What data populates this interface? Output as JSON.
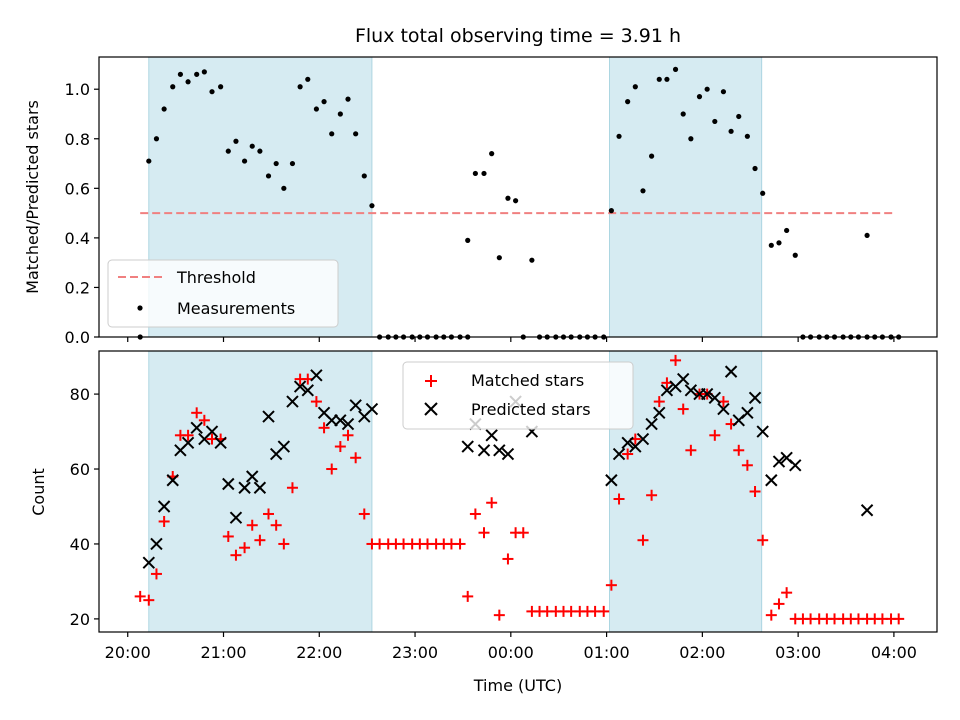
{
  "chart_data": [
    {
      "type": "scatter",
      "title": "Flux total observing time = 3.91 h",
      "xlabel": "",
      "ylabel": "Matched/Predicted stars",
      "x_unit": "hours since 20:00 UTC",
      "xlim": [
        -0.3,
        8.45
      ],
      "ylim": [
        0.0,
        1.13
      ],
      "yticks": [
        0.0,
        0.2,
        0.4,
        0.6,
        0.8,
        1.0
      ],
      "ytick_labels": [
        "0.0",
        "0.2",
        "0.4",
        "0.6",
        "0.8",
        "1.0"
      ],
      "shaded_ranges": [
        [
          0.22,
          2.55
        ],
        [
          5.03,
          6.62
        ]
      ],
      "threshold": {
        "name": "Threshold",
        "y": 0.5,
        "x_range": [
          0.13,
          8.0
        ],
        "color": "#f08080"
      },
      "legend": {
        "placement": "lower-left",
        "entries": [
          "Threshold",
          "Measurements"
        ]
      },
      "series": [
        {
          "name": "Measurements",
          "color": "#000000",
          "points": [
            [
              0.13,
              0.0
            ],
            [
              0.22,
              0.71
            ],
            [
              0.3,
              0.8
            ],
            [
              0.38,
              0.92
            ],
            [
              0.47,
              1.01
            ],
            [
              0.55,
              1.06
            ],
            [
              0.63,
              1.03
            ],
            [
              0.72,
              1.06
            ],
            [
              0.8,
              1.07
            ],
            [
              0.88,
              0.99
            ],
            [
              0.97,
              1.01
            ],
            [
              1.05,
              0.75
            ],
            [
              1.13,
              0.79
            ],
            [
              1.22,
              0.71
            ],
            [
              1.3,
              0.77
            ],
            [
              1.38,
              0.75
            ],
            [
              1.47,
              0.65
            ],
            [
              1.55,
              0.7
            ],
            [
              1.63,
              0.6
            ],
            [
              1.72,
              0.7
            ],
            [
              1.8,
              1.01
            ],
            [
              1.88,
              1.04
            ],
            [
              1.97,
              0.92
            ],
            [
              2.05,
              0.95
            ],
            [
              2.13,
              0.82
            ],
            [
              2.22,
              0.9
            ],
            [
              2.3,
              0.96
            ],
            [
              2.38,
              0.82
            ],
            [
              2.47,
              0.65
            ],
            [
              2.55,
              0.53
            ],
            [
              2.63,
              0.0
            ],
            [
              2.72,
              0.0
            ],
            [
              2.8,
              0.0
            ],
            [
              2.88,
              0.0
            ],
            [
              2.97,
              0.0
            ],
            [
              3.05,
              0.0
            ],
            [
              3.13,
              0.0
            ],
            [
              3.22,
              0.0
            ],
            [
              3.3,
              0.0
            ],
            [
              3.38,
              0.0
            ],
            [
              3.47,
              0.0
            ],
            [
              3.55,
              0.0
            ],
            [
              3.55,
              0.39
            ],
            [
              3.63,
              0.66
            ],
            [
              3.72,
              0.66
            ],
            [
              3.8,
              0.74
            ],
            [
              3.88,
              0.32
            ],
            [
              3.97,
              0.56
            ],
            [
              4.05,
              0.55
            ],
            [
              4.13,
              0.0
            ],
            [
              4.22,
              0.31
            ],
            [
              4.3,
              0.0
            ],
            [
              4.38,
              0.0
            ],
            [
              4.47,
              0.0
            ],
            [
              4.55,
              0.0
            ],
            [
              4.63,
              0.0
            ],
            [
              4.72,
              0.0
            ],
            [
              4.8,
              0.0
            ],
            [
              4.88,
              0.0
            ],
            [
              4.97,
              0.0
            ],
            [
              5.05,
              0.51
            ],
            [
              5.13,
              0.81
            ],
            [
              5.22,
              0.95
            ],
            [
              5.3,
              1.01
            ],
            [
              5.38,
              0.59
            ],
            [
              5.47,
              0.73
            ],
            [
              5.55,
              1.04
            ],
            [
              5.63,
              1.04
            ],
            [
              5.72,
              1.08
            ],
            [
              5.8,
              0.9
            ],
            [
              5.88,
              0.8
            ],
            [
              5.97,
              0.97
            ],
            [
              6.05,
              1.0
            ],
            [
              6.13,
              0.87
            ],
            [
              6.22,
              0.99
            ],
            [
              6.3,
              0.83
            ],
            [
              6.38,
              0.89
            ],
            [
              6.47,
              0.81
            ],
            [
              6.55,
              0.68
            ],
            [
              6.63,
              0.58
            ],
            [
              6.72,
              0.37
            ],
            [
              6.8,
              0.38
            ],
            [
              6.88,
              0.43
            ],
            [
              6.97,
              0.33
            ],
            [
              7.05,
              0.0
            ],
            [
              7.13,
              0.0
            ],
            [
              7.22,
              0.0
            ],
            [
              7.3,
              0.0
            ],
            [
              7.38,
              0.0
            ],
            [
              7.47,
              0.0
            ],
            [
              7.55,
              0.0
            ],
            [
              7.63,
              0.0
            ],
            [
              7.72,
              0.0
            ],
            [
              7.72,
              0.41
            ],
            [
              7.8,
              0.0
            ],
            [
              7.88,
              0.0
            ],
            [
              7.97,
              0.0
            ],
            [
              8.05,
              0.0
            ]
          ]
        }
      ]
    },
    {
      "type": "scatter",
      "title": "",
      "xlabel": "Time (UTC)",
      "ylabel": "Count",
      "x_unit": "hours since 20:00 UTC",
      "xlim": [
        -0.3,
        8.45
      ],
      "ylim": [
        16.5,
        91.5
      ],
      "xticks": [
        0,
        1,
        2,
        3,
        4,
        5,
        6,
        7,
        8
      ],
      "xtick_labels": [
        "20:00",
        "21:00",
        "22:00",
        "23:00",
        "00:00",
        "01:00",
        "02:00",
        "03:00",
        "04:00"
      ],
      "yticks": [
        20,
        40,
        60,
        80
      ],
      "ytick_labels": [
        "20",
        "40",
        "60",
        "80"
      ],
      "shaded_ranges": [
        [
          0.22,
          2.55
        ],
        [
          5.03,
          6.62
        ]
      ],
      "legend": {
        "placement": "top-center",
        "entries": [
          "Matched stars",
          "Predicted stars"
        ]
      },
      "series": [
        {
          "name": "Matched stars",
          "marker": "plus",
          "color": "#ff0000",
          "points": [
            [
              0.13,
              26
            ],
            [
              0.22,
              25
            ],
            [
              0.3,
              32
            ],
            [
              0.38,
              46
            ],
            [
              0.47,
              58
            ],
            [
              0.55,
              69
            ],
            [
              0.63,
              69
            ],
            [
              0.72,
              75
            ],
            [
              0.8,
              73
            ],
            [
              0.88,
              68
            ],
            [
              0.97,
              68
            ],
            [
              1.05,
              42
            ],
            [
              1.13,
              37
            ],
            [
              1.22,
              39
            ],
            [
              1.3,
              45
            ],
            [
              1.38,
              41
            ],
            [
              1.47,
              48
            ],
            [
              1.55,
              45
            ],
            [
              1.63,
              40
            ],
            [
              1.72,
              55
            ],
            [
              1.8,
              84
            ],
            [
              1.88,
              84
            ],
            [
              1.97,
              78
            ],
            [
              2.05,
              71
            ],
            [
              2.13,
              60
            ],
            [
              2.22,
              66
            ],
            [
              2.3,
              69
            ],
            [
              2.38,
              63
            ],
            [
              2.47,
              48
            ],
            [
              2.55,
              40
            ],
            [
              2.63,
              40
            ],
            [
              2.72,
              40
            ],
            [
              2.8,
              40
            ],
            [
              2.88,
              40
            ],
            [
              2.97,
              40
            ],
            [
              3.05,
              40
            ],
            [
              3.13,
              40
            ],
            [
              3.22,
              40
            ],
            [
              3.3,
              40
            ],
            [
              3.38,
              40
            ],
            [
              3.47,
              40
            ],
            [
              3.55,
              26
            ],
            [
              3.63,
              48
            ],
            [
              3.72,
              43
            ],
            [
              3.8,
              51
            ],
            [
              3.88,
              21
            ],
            [
              3.97,
              36
            ],
            [
              4.05,
              43
            ],
            [
              4.13,
              43
            ],
            [
              4.22,
              22
            ],
            [
              4.3,
              22
            ],
            [
              4.38,
              22
            ],
            [
              4.47,
              22
            ],
            [
              4.55,
              22
            ],
            [
              4.63,
              22
            ],
            [
              4.72,
              22
            ],
            [
              4.8,
              22
            ],
            [
              4.88,
              22
            ],
            [
              4.97,
              22
            ],
            [
              5.05,
              29
            ],
            [
              5.13,
              52
            ],
            [
              5.22,
              64
            ],
            [
              5.3,
              68
            ],
            [
              5.38,
              41
            ],
            [
              5.47,
              53
            ],
            [
              5.55,
              78
            ],
            [
              5.63,
              83
            ],
            [
              5.72,
              89
            ],
            [
              5.8,
              76
            ],
            [
              5.88,
              65
            ],
            [
              5.97,
              80
            ],
            [
              6.05,
              80
            ],
            [
              6.13,
              69
            ],
            [
              6.22,
              78
            ],
            [
              6.3,
              72
            ],
            [
              6.38,
              65
            ],
            [
              6.47,
              61
            ],
            [
              6.55,
              54
            ],
            [
              6.63,
              41
            ],
            [
              6.72,
              21
            ],
            [
              6.8,
              24
            ],
            [
              6.88,
              27
            ],
            [
              6.97,
              20
            ],
            [
              7.05,
              20
            ],
            [
              7.13,
              20
            ],
            [
              7.22,
              20
            ],
            [
              7.3,
              20
            ],
            [
              7.38,
              20
            ],
            [
              7.47,
              20
            ],
            [
              7.55,
              20
            ],
            [
              7.63,
              20
            ],
            [
              7.72,
              20
            ],
            [
              7.8,
              20
            ],
            [
              7.88,
              20
            ],
            [
              7.97,
              20
            ],
            [
              8.05,
              20
            ]
          ]
        },
        {
          "name": "Predicted stars",
          "marker": "x",
          "color": "#000000",
          "points": [
            [
              0.22,
              35
            ],
            [
              0.3,
              40
            ],
            [
              0.38,
              50
            ],
            [
              0.47,
              57
            ],
            [
              0.55,
              65
            ],
            [
              0.63,
              67
            ],
            [
              0.72,
              71
            ],
            [
              0.8,
              68
            ],
            [
              0.88,
              70
            ],
            [
              0.97,
              67
            ],
            [
              1.05,
              56
            ],
            [
              1.13,
              47
            ],
            [
              1.22,
              55
            ],
            [
              1.3,
              58
            ],
            [
              1.38,
              55
            ],
            [
              1.47,
              74
            ],
            [
              1.55,
              64
            ],
            [
              1.63,
              66
            ],
            [
              1.72,
              78
            ],
            [
              1.8,
              82
            ],
            [
              1.88,
              81
            ],
            [
              1.97,
              85
            ],
            [
              2.05,
              75
            ],
            [
              2.13,
              73
            ],
            [
              2.22,
              73
            ],
            [
              2.3,
              72
            ],
            [
              2.38,
              77
            ],
            [
              2.47,
              74
            ],
            [
              2.55,
              76
            ],
            [
              3.55,
              66
            ],
            [
              3.63,
              72
            ],
            [
              3.72,
              65
            ],
            [
              3.8,
              69
            ],
            [
              3.88,
              65
            ],
            [
              3.97,
              64
            ],
            [
              4.05,
              78
            ],
            [
              4.22,
              70
            ],
            [
              5.05,
              57
            ],
            [
              5.13,
              64
            ],
            [
              5.22,
              67
            ],
            [
              5.3,
              66
            ],
            [
              5.38,
              68
            ],
            [
              5.47,
              72
            ],
            [
              5.55,
              75
            ],
            [
              5.63,
              81
            ],
            [
              5.72,
              82
            ],
            [
              5.8,
              84
            ],
            [
              5.88,
              81
            ],
            [
              5.97,
              80
            ],
            [
              6.05,
              80
            ],
            [
              6.13,
              79
            ],
            [
              6.22,
              76
            ],
            [
              6.3,
              86
            ],
            [
              6.38,
              73
            ],
            [
              6.47,
              75
            ],
            [
              6.55,
              79
            ],
            [
              6.63,
              70
            ],
            [
              6.72,
              57
            ],
            [
              6.8,
              62
            ],
            [
              6.88,
              63
            ],
            [
              6.97,
              61
            ],
            [
              7.72,
              49
            ]
          ]
        }
      ]
    }
  ]
}
